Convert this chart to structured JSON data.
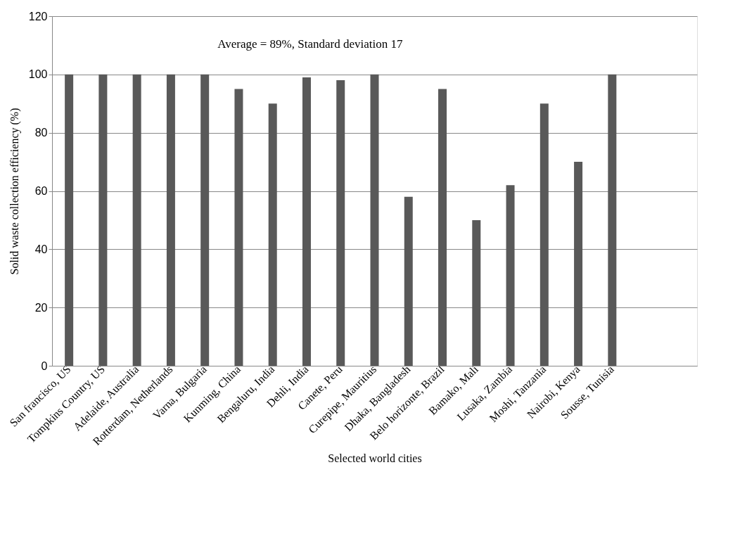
{
  "chart_data": {
    "type": "bar",
    "xlabel": "Selected world cities",
    "ylabel": "Solid waste collection efficiency (%)",
    "annotations": [
      "Average = 89%, Standard deviation 17"
    ],
    "categories": [
      "San francisco, US",
      "Tompkins Country, US",
      "Adelaide, Australia",
      "Rotterdam, Netherlands",
      "Varna, Bulgaria",
      "Kunming, China",
      "Bengaluru, India",
      "Dehli, India",
      "Canete, Peru",
      "Curepipe, Mauritius",
      "Dhaka, Bangladesh",
      "Belo horizonte, Brazil",
      "Bamako, Mali",
      "Lusaka, Zambia",
      "Moshi, Tanzania",
      "Nairobi, Kenya",
      "Sousse, Tunisia",
      null,
      null
    ],
    "values": [
      100,
      100,
      100,
      100,
      100,
      95,
      90,
      99,
      98,
      100,
      58,
      95,
      50,
      62,
      90,
      70,
      100,
      null,
      null
    ],
    "color": "#595959",
    "ylim": [
      0,
      120
    ],
    "yticks": [
      0,
      20,
      40,
      60,
      80,
      100,
      120
    ],
    "grid": "y"
  }
}
